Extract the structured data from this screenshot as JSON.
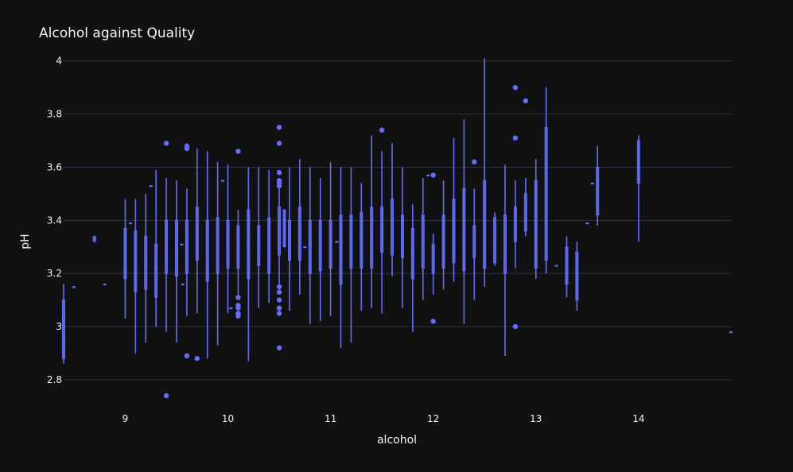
{
  "chart_data": {
    "type": "box",
    "title": "Alcohol against Quality",
    "xlabel": "alcohol",
    "ylabel": "pH",
    "xlim": [
      8.4,
      14.9
    ],
    "ylim": [
      2.71,
      4.05
    ],
    "xticks": [
      "9",
      "10",
      "11",
      "12",
      "13",
      "14"
    ],
    "yticks": [
      "2.8",
      "3",
      "3.2",
      "3.4",
      "3.6",
      "3.8",
      "4"
    ],
    "grid": true,
    "color": "#636efa",
    "background": "#111111",
    "boxes": [
      {
        "x": 8.4,
        "min": 2.86,
        "q1": 2.88,
        "med": 3.0,
        "q3": 3.1,
        "max": 3.16
      },
      {
        "x": 8.5,
        "min": 3.15,
        "q1": 3.15,
        "med": 3.15,
        "q3": 3.15,
        "max": 3.15
      },
      {
        "x": 8.7,
        "min": 3.32,
        "q1": 3.32,
        "med": 3.33,
        "q3": 3.34,
        "max": 3.34
      },
      {
        "x": 8.8,
        "min": 3.16,
        "q1": 3.16,
        "med": 3.16,
        "q3": 3.16,
        "max": 3.16
      },
      {
        "x": 9.0,
        "min": 3.03,
        "q1": 3.18,
        "med": 3.28,
        "q3": 3.37,
        "max": 3.48
      },
      {
        "x": 9.05,
        "min": 3.39,
        "q1": 3.39,
        "med": 3.39,
        "q3": 3.39,
        "max": 3.39
      },
      {
        "x": 9.1,
        "min": 2.9,
        "q1": 3.13,
        "med": 3.25,
        "q3": 3.36,
        "max": 3.48
      },
      {
        "x": 9.2,
        "min": 2.94,
        "q1": 3.14,
        "med": 3.24,
        "q3": 3.34,
        "max": 3.5
      },
      {
        "x": 9.25,
        "min": 3.53,
        "q1": 3.53,
        "med": 3.53,
        "q3": 3.53,
        "max": 3.53
      },
      {
        "x": 9.3,
        "min": 3.0,
        "q1": 3.11,
        "med": 3.22,
        "q3": 3.31,
        "max": 3.59
      },
      {
        "x": 9.4,
        "min": 2.98,
        "q1": 3.2,
        "med": 3.3,
        "q3": 3.4,
        "max": 3.56,
        "outliers": [
          3.69,
          2.74
        ]
      },
      {
        "x": 9.5,
        "min": 2.94,
        "q1": 3.19,
        "med": 3.29,
        "q3": 3.4,
        "max": 3.55
      },
      {
        "x": 9.55,
        "min": 3.31,
        "q1": 3.31,
        "med": 3.31,
        "q3": 3.31,
        "max": 3.31
      },
      {
        "x": 9.56,
        "min": 3.16,
        "q1": 3.16,
        "med": 3.16,
        "q3": 3.16,
        "max": 3.16
      },
      {
        "x": 9.6,
        "min": 3.04,
        "q1": 3.2,
        "med": 3.3,
        "q3": 3.4,
        "max": 3.52,
        "outliers": [
          3.68,
          3.67,
          2.89
        ]
      },
      {
        "x": 9.7,
        "min": 3.05,
        "q1": 3.25,
        "med": 3.35,
        "q3": 3.45,
        "max": 3.67,
        "outliers": [
          2.88
        ]
      },
      {
        "x": 9.8,
        "min": 2.88,
        "q1": 3.17,
        "med": 3.28,
        "q3": 3.4,
        "max": 3.66
      },
      {
        "x": 9.9,
        "min": 2.93,
        "q1": 3.2,
        "med": 3.3,
        "q3": 3.41,
        "max": 3.62
      },
      {
        "x": 9.95,
        "min": 3.55,
        "q1": 3.55,
        "med": 3.55,
        "q3": 3.55,
        "max": 3.55
      },
      {
        "x": 10.0,
        "min": 3.05,
        "q1": 3.22,
        "med": 3.32,
        "q3": 3.4,
        "max": 3.61
      },
      {
        "x": 10.03,
        "min": 3.07,
        "q1": 3.07,
        "med": 3.07,
        "q3": 3.07,
        "max": 3.07
      },
      {
        "x": 10.1,
        "min": 3.12,
        "q1": 3.22,
        "med": 3.3,
        "q3": 3.38,
        "max": 3.44,
        "outliers": [
          3.66,
          3.11,
          3.08,
          3.07,
          3.05,
          3.04
        ]
      },
      {
        "x": 10.2,
        "min": 2.87,
        "q1": 3.18,
        "med": 3.3,
        "q3": 3.44,
        "max": 3.6
      },
      {
        "x": 10.3,
        "min": 3.07,
        "q1": 3.23,
        "med": 3.3,
        "q3": 3.38,
        "max": 3.6
      },
      {
        "x": 10.4,
        "min": 3.09,
        "q1": 3.2,
        "med": 3.3,
        "q3": 3.41,
        "max": 3.59
      },
      {
        "x": 10.5,
        "min": 3.16,
        "q1": 3.27,
        "med": 3.35,
        "q3": 3.45,
        "max": 3.52,
        "outliers": [
          3.75,
          3.69,
          3.58,
          3.55,
          3.54,
          3.53,
          3.15,
          3.13,
          3.1,
          3.07,
          3.05,
          2.92
        ]
      },
      {
        "x": 10.55,
        "min": 3.3,
        "q1": 3.3,
        "med": 3.37,
        "q3": 3.44,
        "max": 3.44
      },
      {
        "x": 10.6,
        "min": 3.06,
        "q1": 3.25,
        "med": 3.32,
        "q3": 3.4,
        "max": 3.6
      },
      {
        "x": 10.7,
        "min": 3.12,
        "q1": 3.25,
        "med": 3.35,
        "q3": 3.45,
        "max": 3.63
      },
      {
        "x": 10.75,
        "min": 3.3,
        "q1": 3.3,
        "med": 3.3,
        "q3": 3.3,
        "max": 3.3
      },
      {
        "x": 10.8,
        "min": 3.01,
        "q1": 3.2,
        "med": 3.3,
        "q3": 3.4,
        "max": 3.6
      },
      {
        "x": 10.9,
        "min": 3.02,
        "q1": 3.21,
        "med": 3.3,
        "q3": 3.4,
        "max": 3.56
      },
      {
        "x": 11.0,
        "min": 3.04,
        "q1": 3.22,
        "med": 3.3,
        "q3": 3.4,
        "max": 3.62
      },
      {
        "x": 11.06,
        "min": 3.32,
        "q1": 3.32,
        "med": 3.32,
        "q3": 3.32,
        "max": 3.32
      },
      {
        "x": 11.1,
        "min": 2.92,
        "q1": 3.16,
        "med": 3.28,
        "q3": 3.42,
        "max": 3.6
      },
      {
        "x": 11.2,
        "min": 2.94,
        "q1": 3.22,
        "med": 3.33,
        "q3": 3.42,
        "max": 3.6
      },
      {
        "x": 11.3,
        "min": 3.06,
        "q1": 3.22,
        "med": 3.33,
        "q3": 3.43,
        "max": 3.54
      },
      {
        "x": 11.4,
        "min": 3.07,
        "q1": 3.22,
        "med": 3.34,
        "q3": 3.45,
        "max": 3.72
      },
      {
        "x": 11.5,
        "min": 3.05,
        "q1": 3.28,
        "med": 3.36,
        "q3": 3.45,
        "max": 3.66,
        "outliers": [
          3.74
        ]
      },
      {
        "x": 11.6,
        "min": 3.19,
        "q1": 3.27,
        "med": 3.35,
        "q3": 3.48,
        "max": 3.69
      },
      {
        "x": 11.7,
        "min": 3.07,
        "q1": 3.26,
        "med": 3.34,
        "q3": 3.42,
        "max": 3.6
      },
      {
        "x": 11.8,
        "min": 2.98,
        "q1": 3.18,
        "med": 3.28,
        "q3": 3.37,
        "max": 3.46
      },
      {
        "x": 11.9,
        "min": 3.1,
        "q1": 3.22,
        "med": 3.32,
        "q3": 3.42,
        "max": 3.56
      },
      {
        "x": 11.95,
        "min": 3.57,
        "q1": 3.57,
        "med": 3.57,
        "q3": 3.57,
        "max": 3.57
      },
      {
        "x": 12.0,
        "min": 3.12,
        "q1": 3.2,
        "med": 3.27,
        "q3": 3.31,
        "max": 3.35,
        "outliers": [
          3.57,
          3.02
        ]
      },
      {
        "x": 12.1,
        "min": 3.14,
        "q1": 3.22,
        "med": 3.32,
        "q3": 3.42,
        "max": 3.55
      },
      {
        "x": 12.2,
        "min": 3.17,
        "q1": 3.24,
        "med": 3.37,
        "q3": 3.48,
        "max": 3.71
      },
      {
        "x": 12.3,
        "min": 3.01,
        "q1": 3.21,
        "med": 3.33,
        "q3": 3.52,
        "max": 3.78
      },
      {
        "x": 12.4,
        "min": 3.1,
        "q1": 3.26,
        "med": 3.32,
        "q3": 3.38,
        "max": 3.52,
        "outliers": [
          3.62
        ]
      },
      {
        "x": 12.5,
        "min": 3.15,
        "q1": 3.22,
        "med": 3.35,
        "q3": 3.55,
        "max": 4.01
      },
      {
        "x": 12.6,
        "min": 3.23,
        "q1": 3.24,
        "med": 3.32,
        "q3": 3.41,
        "max": 3.43
      },
      {
        "x": 12.7,
        "min": 2.89,
        "q1": 3.2,
        "med": 3.3,
        "q3": 3.42,
        "max": 3.61
      },
      {
        "x": 12.8,
        "min": 3.22,
        "q1": 3.32,
        "med": 3.38,
        "q3": 3.45,
        "max": 3.55,
        "outliers": [
          3.9,
          3.71,
          3.0
        ]
      },
      {
        "x": 12.9,
        "min": 3.34,
        "q1": 3.36,
        "med": 3.42,
        "q3": 3.5,
        "max": 3.56,
        "outliers": [
          3.85
        ]
      },
      {
        "x": 13.0,
        "min": 3.18,
        "q1": 3.22,
        "med": 3.32,
        "q3": 3.55,
        "max": 3.63
      },
      {
        "x": 13.1,
        "min": 3.2,
        "q1": 3.25,
        "med": 3.45,
        "q3": 3.75,
        "max": 3.9
      },
      {
        "x": 13.2,
        "min": 3.23,
        "q1": 3.23,
        "med": 3.23,
        "q3": 3.23,
        "max": 3.23
      },
      {
        "x": 13.3,
        "min": 3.11,
        "q1": 3.16,
        "med": 3.26,
        "q3": 3.3,
        "max": 3.34
      },
      {
        "x": 13.4,
        "min": 3.06,
        "q1": 3.1,
        "med": 3.2,
        "q3": 3.28,
        "max": 3.32
      },
      {
        "x": 13.5,
        "min": 3.39,
        "q1": 3.39,
        "med": 3.39,
        "q3": 3.39,
        "max": 3.39
      },
      {
        "x": 13.55,
        "min": 3.54,
        "q1": 3.54,
        "med": 3.54,
        "q3": 3.54,
        "max": 3.54
      },
      {
        "x": 13.6,
        "min": 3.38,
        "q1": 3.42,
        "med": 3.5,
        "q3": 3.6,
        "max": 3.68
      },
      {
        "x": 14.0,
        "min": 3.32,
        "q1": 3.54,
        "med": 3.62,
        "q3": 3.7,
        "max": 3.72
      },
      {
        "x": 14.9,
        "min": 2.98,
        "q1": 2.98,
        "med": 2.98,
        "q3": 2.98,
        "max": 2.98
      }
    ]
  }
}
